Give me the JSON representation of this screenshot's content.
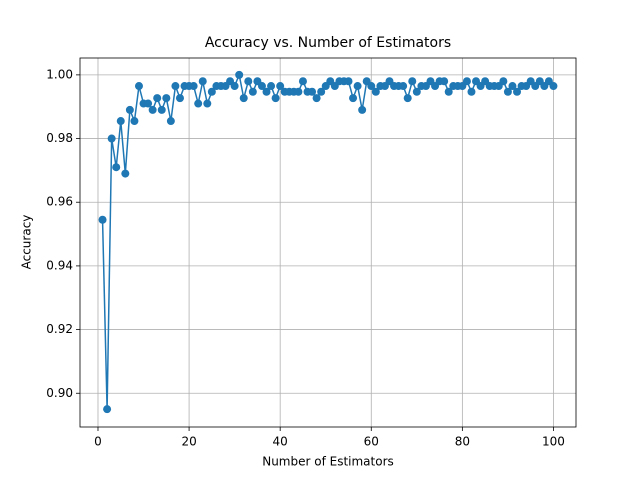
{
  "chart_data": {
    "type": "line",
    "title": "Accuracy vs. Number of Estimators",
    "xlabel": "Number of Estimators",
    "ylabel": "Accuracy",
    "x": [
      1,
      2,
      3,
      4,
      5,
      6,
      7,
      8,
      9,
      10,
      11,
      12,
      13,
      14,
      15,
      16,
      17,
      18,
      19,
      20,
      21,
      22,
      23,
      24,
      25,
      26,
      27,
      28,
      29,
      30,
      31,
      32,
      33,
      34,
      35,
      36,
      37,
      38,
      39,
      40,
      41,
      42,
      43,
      44,
      45,
      46,
      47,
      48,
      49,
      50,
      51,
      52,
      53,
      54,
      55,
      56,
      57,
      58,
      59,
      60,
      61,
      62,
      63,
      64,
      65,
      66,
      67,
      68,
      69,
      70,
      71,
      72,
      73,
      74,
      75,
      76,
      77,
      78,
      79,
      80,
      81,
      82,
      83,
      84,
      85,
      86,
      87,
      88,
      89,
      90,
      91,
      92,
      93,
      94,
      95,
      96,
      97,
      98,
      99,
      100
    ],
    "series": [
      {
        "name": "Accuracy",
        "color": "#1f77b4",
        "values": [
          0.9545,
          0.895,
          0.98,
          0.971,
          0.9855,
          0.969,
          0.989,
          0.9855,
          0.9965,
          0.991,
          0.991,
          0.989,
          0.9927,
          0.989,
          0.9927,
          0.9855,
          0.9965,
          0.9927,
          0.9965,
          0.9965,
          0.9965,
          0.991,
          0.998,
          0.991,
          0.9947,
          0.9965,
          0.9965,
          0.9965,
          0.998,
          0.9965,
          1.0,
          0.9927,
          0.998,
          0.9947,
          0.998,
          0.9965,
          0.9947,
          0.9965,
          0.9927,
          0.9965,
          0.9947,
          0.9947,
          0.9947,
          0.9947,
          0.998,
          0.9947,
          0.9947,
          0.9927,
          0.9947,
          0.9965,
          0.998,
          0.9965,
          0.998,
          0.998,
          0.998,
          0.9927,
          0.9965,
          0.989,
          0.998,
          0.9965,
          0.9947,
          0.9965,
          0.9965,
          0.998,
          0.9965,
          0.9965,
          0.9965,
          0.9927,
          0.998,
          0.9947,
          0.9965,
          0.9965,
          0.998,
          0.9965,
          0.998,
          0.998,
          0.9947,
          0.9965,
          0.9965,
          0.9965,
          0.998,
          0.9947,
          0.998,
          0.9965,
          0.998,
          0.9965,
          0.9965,
          0.9965,
          0.998,
          0.9947,
          0.9965,
          0.9947,
          0.9965,
          0.9965,
          0.998,
          0.9965,
          0.998,
          0.9965,
          0.998,
          0.9965
        ]
      }
    ],
    "xlim": [
      -3.95,
      104.95
    ],
    "xticks": [
      0,
      20,
      40,
      60,
      80,
      100
    ],
    "ylim": [
      0.8894,
      1.0053
    ],
    "yticks": [
      {
        "value": 0.9,
        "label": "0.90"
      },
      {
        "value": 0.92,
        "label": "0.92"
      },
      {
        "value": 0.94,
        "label": "0.94"
      },
      {
        "value": 0.96,
        "label": "0.96"
      },
      {
        "value": 0.98,
        "label": "0.98"
      },
      {
        "value": 1,
        "label": "1.00"
      }
    ],
    "grid": true
  }
}
